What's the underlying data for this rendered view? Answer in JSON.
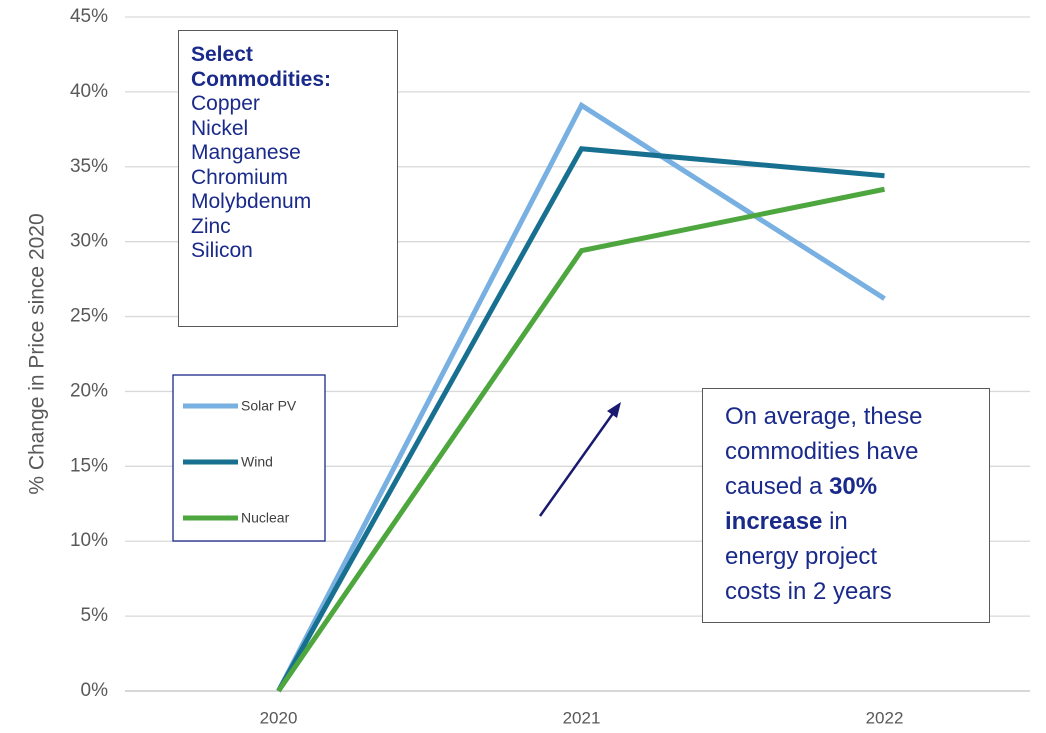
{
  "chart_data": {
    "type": "line",
    "y_label": "% Change in Price since 2020",
    "categories": [
      "2020",
      "2021",
      "2022"
    ],
    "series": [
      {
        "name": "Solar PV",
        "color": "#78b0e2",
        "values": [
          0,
          39.1,
          26.2
        ]
      },
      {
        "name": "Wind",
        "color": "#17708f",
        "values": [
          0,
          36.2,
          34.4
        ]
      },
      {
        "name": "Nuclear",
        "color": "#4ea63e",
        "values": [
          0,
          29.4,
          33.5
        ]
      }
    ],
    "ylim": [
      0,
      45
    ],
    "yticks": [
      {
        "value": 0,
        "label": "0%"
      },
      {
        "value": 5,
        "label": "5%"
      },
      {
        "value": 10,
        "label": "10%"
      },
      {
        "value": 15,
        "label": "15%"
      },
      {
        "value": 20,
        "label": "20%"
      },
      {
        "value": 25,
        "label": "25%"
      },
      {
        "value": 30,
        "label": "30%"
      },
      {
        "value": 35,
        "label": "35%"
      },
      {
        "value": 40,
        "label": "40%"
      },
      {
        "value": 45,
        "label": "45%"
      }
    ],
    "grid": true,
    "commodities": {
      "title": "Select Commodities:",
      "items": [
        "Copper",
        "Nickel",
        "Manganese",
        "Chromium",
        "Molybdenum",
        "Zinc",
        "Silicon"
      ]
    },
    "annotation": [
      [
        {
          "text": "On average, these"
        }
      ],
      [
        {
          "text": "commodities have"
        }
      ],
      [
        {
          "text": "caused a "
        },
        {
          "text": "30%",
          "bold": true
        }
      ],
      [
        {
          "text": "increase",
          "bold": true
        },
        {
          "text": " in"
        }
      ],
      [
        {
          "text": "energy project"
        }
      ],
      [
        {
          "text": "costs in 2 years"
        }
      ]
    ]
  }
}
